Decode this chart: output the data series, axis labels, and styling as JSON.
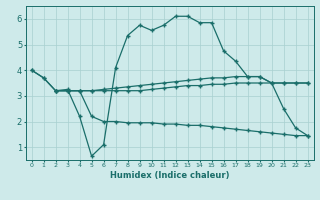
{
  "xlabel": "Humidex (Indice chaleur)",
  "background_color": "#ceeaea",
  "grid_color": "#a8d0d0",
  "line_color": "#1a6e6a",
  "xlim": [
    -0.5,
    23.5
  ],
  "ylim": [
    0.5,
    6.5
  ],
  "xticks": [
    0,
    1,
    2,
    3,
    4,
    5,
    6,
    7,
    8,
    9,
    10,
    11,
    12,
    13,
    14,
    15,
    16,
    17,
    18,
    19,
    20,
    21,
    22,
    23
  ],
  "yticks": [
    1,
    2,
    3,
    4,
    5,
    6
  ],
  "line_up_x": [
    0,
    1,
    2,
    3,
    4,
    5,
    6,
    7,
    8,
    9,
    10,
    11,
    12,
    13,
    14,
    15,
    16,
    17,
    18,
    19,
    20,
    21,
    22,
    23
  ],
  "line_up_y": [
    4.0,
    3.7,
    3.2,
    3.25,
    2.2,
    0.65,
    1.1,
    4.1,
    5.35,
    5.75,
    5.55,
    5.75,
    6.1,
    6.1,
    5.85,
    5.85,
    4.75,
    4.35,
    3.75,
    3.75,
    3.5,
    2.5,
    1.75,
    1.45
  ],
  "line_flat1_x": [
    0,
    1,
    2,
    3,
    4,
    5,
    6,
    7,
    8,
    9,
    10,
    11,
    12,
    13,
    14,
    15,
    16,
    17,
    18,
    19,
    20,
    21,
    22,
    23
  ],
  "line_flat1_y": [
    4.0,
    3.7,
    3.2,
    3.2,
    3.2,
    3.2,
    3.25,
    3.3,
    3.35,
    3.4,
    3.45,
    3.5,
    3.55,
    3.6,
    3.65,
    3.7,
    3.7,
    3.75,
    3.75,
    3.75,
    3.5,
    3.5,
    3.5,
    3.5
  ],
  "line_flat2_x": [
    2,
    3,
    4,
    5,
    6,
    7,
    8,
    9,
    10,
    11,
    12,
    13,
    14,
    15,
    16,
    17,
    18,
    19,
    20,
    21,
    22,
    23
  ],
  "line_flat2_y": [
    3.2,
    3.2,
    3.2,
    3.2,
    3.2,
    3.2,
    3.2,
    3.2,
    3.25,
    3.3,
    3.35,
    3.4,
    3.4,
    3.45,
    3.45,
    3.5,
    3.5,
    3.5,
    3.5,
    3.5,
    3.5,
    3.5
  ],
  "line_low_x": [
    2,
    3,
    4,
    5,
    6,
    7,
    8,
    9,
    10,
    11,
    12,
    13,
    14,
    15,
    16,
    17,
    18,
    19,
    20,
    21,
    22,
    23
  ],
  "line_low_y": [
    3.2,
    3.2,
    3.2,
    2.2,
    2.0,
    2.0,
    1.95,
    1.95,
    1.95,
    1.9,
    1.9,
    1.85,
    1.85,
    1.8,
    1.75,
    1.7,
    1.65,
    1.6,
    1.55,
    1.5,
    1.45,
    1.45
  ]
}
